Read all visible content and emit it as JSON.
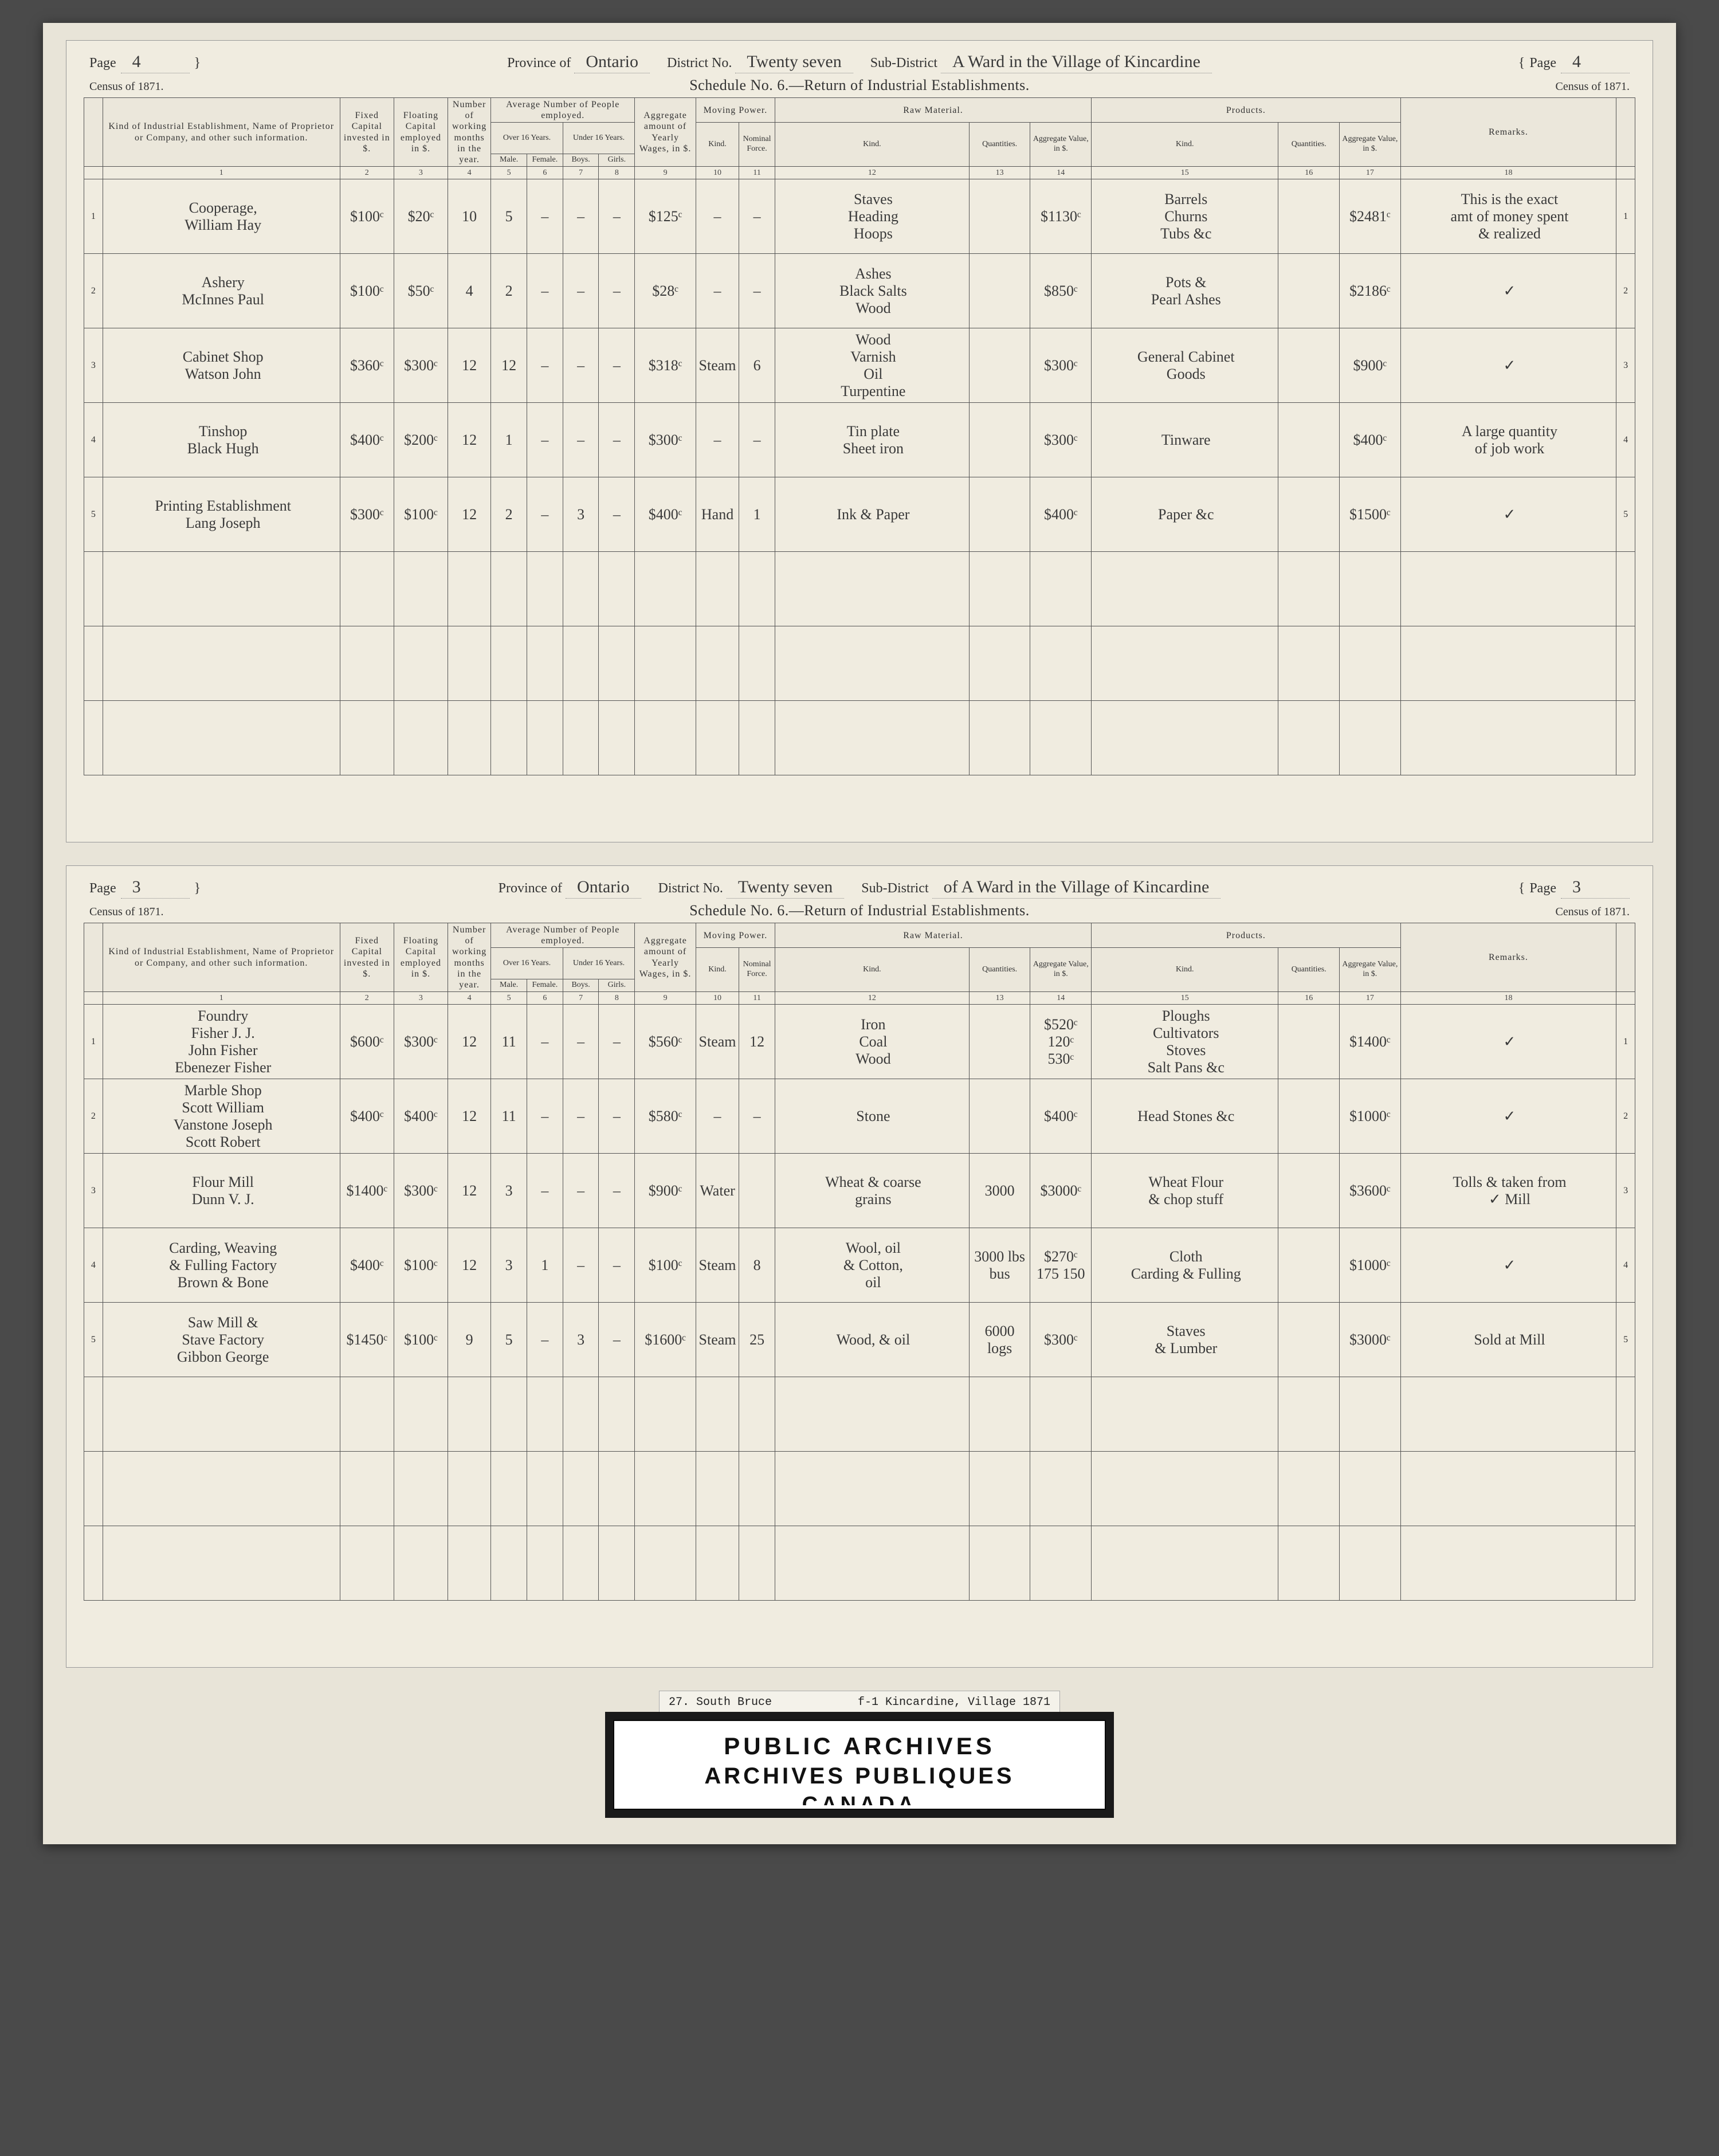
{
  "sheets": [
    {
      "page_left": "4",
      "province_label": "Province of",
      "province": "Ontario",
      "district_label": "District No.",
      "district": "Twenty seven",
      "subdistrict_label": "Sub-District",
      "subdistrict": "A Ward in the Village of Kincardine",
      "page_right": "4",
      "census_label_left": "Census of 1871.",
      "census_label_right": "Census of 1871.",
      "schedule_title": "Schedule No. 6.—Return of Industrial Establishments.",
      "rows": [
        {
          "n": "1",
          "establishment": "Cooperage,\nWilliam Hay",
          "fixed_cap": "$100ᶜ",
          "float_cap": "$20ᶜ",
          "months": "10",
          "male": "5",
          "female": "–",
          "boys": "–",
          "girls": "–",
          "wages": "$125ᶜ",
          "mkind": "–",
          "mforce": "–",
          "rm_kind": "Staves\nHeading\nHoops",
          "rm_qty": "",
          "rm_val": "$1130ᶜ",
          "p_kind": "Barrels\nChurns\nTubs &c",
          "p_qty": "",
          "p_val": "$2481ᶜ",
          "remarks": "This is the exact\namt of money spent\n& realized"
        },
        {
          "n": "2",
          "establishment": "Ashery\nMcInnes Paul",
          "fixed_cap": "$100ᶜ",
          "float_cap": "$50ᶜ",
          "months": "4",
          "male": "2",
          "female": "–",
          "boys": "–",
          "girls": "–",
          "wages": "$28ᶜ",
          "mkind": "–",
          "mforce": "–",
          "rm_kind": "Ashes\nBlack Salts\nWood",
          "rm_qty": "",
          "rm_val": "$850ᶜ",
          "p_kind": "Pots &\nPearl Ashes",
          "p_qty": "",
          "p_val": "$2186ᶜ",
          "remarks": "✓"
        },
        {
          "n": "3",
          "establishment": "Cabinet Shop\nWatson John",
          "fixed_cap": "$360ᶜ",
          "float_cap": "$300ᶜ",
          "months": "12",
          "male": "12",
          "female": "–",
          "boys": "–",
          "girls": "–",
          "wages": "$318ᶜ",
          "mkind": "Steam",
          "mforce": "6",
          "rm_kind": "Wood\nVarnish\nOil\nTurpentine",
          "rm_qty": "",
          "rm_val": "$300ᶜ",
          "p_kind": "General Cabinet\nGoods",
          "p_qty": "",
          "p_val": "$900ᶜ",
          "remarks": "✓"
        },
        {
          "n": "4",
          "establishment": "Tinshop\nBlack Hugh",
          "fixed_cap": "$400ᶜ",
          "float_cap": "$200ᶜ",
          "months": "12",
          "male": "1",
          "female": "–",
          "boys": "–",
          "girls": "–",
          "wages": "$300ᶜ",
          "mkind": "–",
          "mforce": "–",
          "rm_kind": "Tin plate\nSheet iron",
          "rm_qty": "",
          "rm_val": "$300ᶜ",
          "p_kind": "Tinware",
          "p_qty": "",
          "p_val": "$400ᶜ",
          "remarks": "A large quantity\nof job work"
        },
        {
          "n": "5",
          "establishment": "Printing Establishment\nLang Joseph",
          "fixed_cap": "$300ᶜ",
          "float_cap": "$100ᶜ",
          "months": "12",
          "male": "2",
          "female": "–",
          "boys": "3",
          "girls": "–",
          "wages": "$400ᶜ",
          "mkind": "Hand",
          "mforce": "1",
          "rm_kind": "Ink & Paper",
          "rm_qty": "",
          "rm_val": "$400ᶜ",
          "p_kind": "Paper &c",
          "p_qty": "",
          "p_val": "$1500ᶜ",
          "remarks": "✓"
        }
      ],
      "blank_rows": 3
    },
    {
      "page_left": "3",
      "province_label": "Province of",
      "province": "Ontario",
      "district_label": "District No.",
      "district": "Twenty seven",
      "subdistrict_label": "Sub-District",
      "subdistrict": "of A Ward in the Village of Kincardine",
      "page_right": "3",
      "census_label_left": "Census of 1871.",
      "census_label_right": "Census of 1871.",
      "schedule_title": "Schedule No. 6.—Return of Industrial Establishments.",
      "rows": [
        {
          "n": "1",
          "establishment": "Foundry\nFisher J. J.\nJohn Fisher\nEbenezer Fisher",
          "fixed_cap": "$600ᶜ",
          "float_cap": "$300ᶜ",
          "months": "12",
          "male": "11",
          "female": "–",
          "boys": "–",
          "girls": "–",
          "wages": "$560ᶜ",
          "mkind": "Steam",
          "mforce": "12",
          "rm_kind": "Iron\nCoal\nWood",
          "rm_qty": "",
          "rm_val": "$520ᶜ\n120ᶜ\n530ᶜ",
          "p_kind": "Ploughs\nCultivators\nStoves\nSalt Pans &c",
          "p_qty": "",
          "p_val": "$1400ᶜ",
          "remarks": "✓"
        },
        {
          "n": "2",
          "establishment": "Marble Shop\nScott William\nVanstone Joseph\nScott Robert",
          "fixed_cap": "$400ᶜ",
          "float_cap": "$400ᶜ",
          "months": "12",
          "male": "11",
          "female": "–",
          "boys": "–",
          "girls": "–",
          "wages": "$580ᶜ",
          "mkind": "–",
          "mforce": "–",
          "rm_kind": "Stone",
          "rm_qty": "",
          "rm_val": "$400ᶜ",
          "p_kind": "Head Stones &c",
          "p_qty": "",
          "p_val": "$1000ᶜ",
          "remarks": "✓"
        },
        {
          "n": "3",
          "establishment": "Flour Mill\nDunn V. J.",
          "fixed_cap": "$1400ᶜ",
          "float_cap": "$300ᶜ",
          "months": "12",
          "male": "3",
          "female": "–",
          "boys": "–",
          "girls": "–",
          "wages": "$900ᶜ",
          "mkind": "Water",
          "mforce": "",
          "rm_kind": "Wheat & coarse\ngrains",
          "rm_qty": "3000",
          "rm_val": "$3000ᶜ",
          "p_kind": "Wheat Flour\n& chop stuff",
          "p_qty": "",
          "p_val": "$3600ᶜ",
          "remarks": "Tolls & taken from\n✓ Mill"
        },
        {
          "n": "4",
          "establishment": "Carding, Weaving\n& Fulling Factory\nBrown & Bone",
          "fixed_cap": "$400ᶜ",
          "float_cap": "$100ᶜ",
          "months": "12",
          "male": "3",
          "female": "1",
          "boys": "–",
          "girls": "–",
          "wages": "$100ᶜ",
          "mkind": "Steam",
          "mforce": "8",
          "rm_kind": "Wool, oil\n& Cotton,\noil",
          "rm_qty": "3000 lbs\nbus",
          "rm_val": "$270ᶜ\n175\n150",
          "p_kind": "Cloth\nCarding & Fulling",
          "p_qty": "",
          "p_val": "$1000ᶜ",
          "remarks": "✓"
        },
        {
          "n": "5",
          "establishment": "Saw Mill &\nStave Factory\nGibbon George",
          "fixed_cap": "$1450ᶜ",
          "float_cap": "$100ᶜ",
          "months": "9",
          "male": "5",
          "female": "–",
          "boys": "3",
          "girls": "–",
          "wages": "$1600ᶜ",
          "mkind": "Steam",
          "mforce": "25",
          "rm_kind": "Wood, & oil",
          "rm_qty": "6000\nlogs",
          "rm_val": "$300ᶜ",
          "p_kind": "Staves\n& Lumber",
          "p_qty": "",
          "p_val": "$3000ᶜ",
          "remarks": "Sold at Mill"
        }
      ],
      "blank_rows": 3
    }
  ],
  "column_headers": {
    "groups": {
      "avg_people": "Average Number of People employed.",
      "moving": "Moving Power.",
      "raw": "Raw Material.",
      "products": "Products."
    },
    "sub": {
      "over16": "Over 16 Years.",
      "under16": "Under 16 Years."
    },
    "cols": {
      "establishment": "Kind of Industrial Establishment, Name of Proprietor or Company, and other such information.",
      "fixed_cap": "Fixed Capital invested in $.",
      "float_cap": "Floating Capital employed in $.",
      "months": "Number of working months in the year.",
      "male": "Male.",
      "female": "Female.",
      "boys": "Boys.",
      "girls": "Girls.",
      "wages": "Aggregate amount of Yearly Wages, in $.",
      "mkind": "Kind.",
      "mforce": "Nominal Force.",
      "rmkind": "Kind.",
      "rmqty": "Quantities.",
      "rmval": "Aggregate Value, in $.",
      "pkind": "Kind.",
      "pqty": "Quantities.",
      "pval": "Aggregate Value, in $.",
      "remarks": "Remarks."
    },
    "numbers": [
      "1",
      "2",
      "3",
      "4",
      "5",
      "6",
      "7",
      "8",
      "9",
      "10",
      "11",
      "12",
      "13",
      "14",
      "15",
      "16",
      "17",
      "18"
    ]
  },
  "caption": {
    "left": "27.  South Bruce",
    "right": "f-1  Kincardine, Village 1871"
  },
  "archives": {
    "line1": "PUBLIC  ARCHIVES",
    "line2": "ARCHIVES  PUBLIQUES",
    "line3": "CANADA"
  },
  "page_label": "Page"
}
